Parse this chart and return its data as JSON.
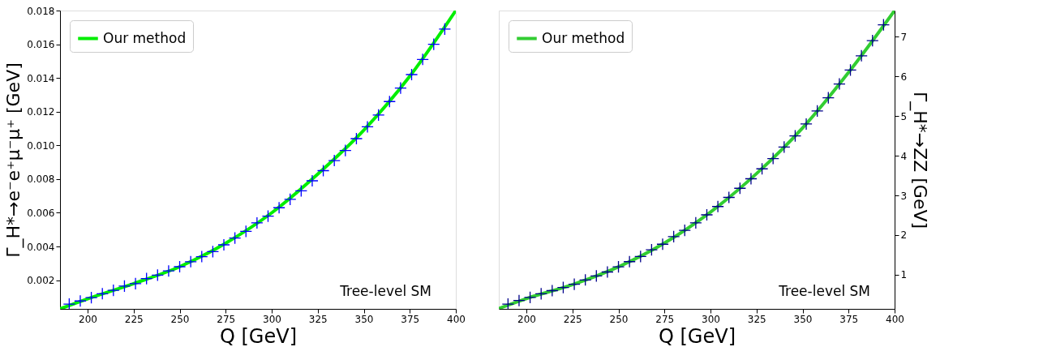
{
  "chart_data": [
    {
      "type": "line",
      "xlabel": "Q [GeV]",
      "ylabel": "Γ_H*→e⁻e⁺μ⁻μ⁺ [GeV]",
      "annotations": [
        "Tree-level SM"
      ],
      "xlim": [
        185,
        400
      ],
      "xticks": [
        200,
        225,
        250,
        275,
        300,
        325,
        350,
        375,
        400
      ],
      "ylim": [
        0.0003,
        0.018
      ],
      "yticks": [
        0.002,
        0.004,
        0.006,
        0.008,
        {
          "value": 0.01,
          "label": "0.010"
        },
        0.012,
        0.014,
        0.016,
        0.018
      ],
      "legend": "top left",
      "grid": false,
      "series": [
        {
          "name": "Our method",
          "color": "#00ee00",
          "x": [
            185,
            200,
            225,
            250,
            275,
            300,
            325,
            350,
            375,
            400
          ],
          "values": [
            0.0003,
            0.0009,
            0.0018,
            0.0028,
            0.0042,
            0.006,
            0.0083,
            0.0109,
            0.0141,
            0.018
          ]
        },
        {
          "type": "scatter",
          "marker": "cross",
          "color": "#0000ff",
          "x": [
            190,
            196,
            202,
            208,
            214,
            220,
            226,
            232,
            238,
            244,
            250,
            256,
            262,
            268,
            274,
            280,
            286,
            292,
            298,
            304,
            310,
            316,
            322,
            328,
            334,
            340,
            346,
            352,
            358,
            364,
            370,
            376,
            382,
            388,
            394
          ],
          "values": [
            0.00058,
            0.00077,
            0.00097,
            0.0012,
            0.0014,
            0.00165,
            0.0018,
            0.0021,
            0.0023,
            0.00255,
            0.0028,
            0.0031,
            0.0034,
            0.0037,
            0.0041,
            0.0045,
            0.0049,
            0.0054,
            0.0058,
            0.0063,
            0.0068,
            0.0073,
            0.0079,
            0.0085,
            0.0091,
            0.0097,
            0.0104,
            0.0111,
            0.0118,
            0.0126,
            0.0134,
            0.0142,
            0.0151,
            0.016,
            0.0169
          ]
        }
      ]
    },
    {
      "type": "line",
      "xlabel": "Q [GeV]",
      "ylabel": "Γ_H*→ZZ [GeV]",
      "annotations": [
        "Tree-level SM"
      ],
      "xlim": [
        185,
        400
      ],
      "xticks": [
        200,
        225,
        250,
        275,
        300,
        325,
        350,
        375,
        400
      ],
      "ylim": [
        0.14,
        7.66
      ],
      "yticks": [
        1,
        2,
        3,
        4,
        5,
        6,
        7
      ],
      "legend": "top left",
      "grid": false,
      "series": [
        {
          "name": "Our method",
          "color": "#32cd32",
          "x": [
            185,
            200,
            225,
            250,
            275,
            300,
            325,
            350,
            375,
            400
          ],
          "values": [
            0.15,
            0.4,
            0.75,
            1.2,
            1.8,
            2.58,
            3.55,
            4.7,
            6.1,
            7.66
          ]
        },
        {
          "type": "scatter",
          "marker": "cross",
          "color": "#00008b",
          "x": [
            190,
            196,
            202,
            208,
            214,
            220,
            226,
            232,
            238,
            244,
            250,
            256,
            262,
            268,
            274,
            280,
            286,
            292,
            298,
            304,
            310,
            316,
            322,
            328,
            334,
            340,
            346,
            352,
            358,
            364,
            370,
            376,
            382,
            388,
            394
          ],
          "values": [
            0.26,
            0.35,
            0.43,
            0.52,
            0.6,
            0.68,
            0.76,
            0.87,
            0.97,
            1.07,
            1.2,
            1.33,
            1.46,
            1.63,
            1.77,
            1.96,
            2.12,
            2.31,
            2.51,
            2.72,
            2.95,
            3.18,
            3.42,
            3.67,
            3.93,
            4.22,
            4.5,
            4.8,
            5.13,
            5.46,
            5.81,
            6.16,
            6.52,
            6.9,
            7.3
          ]
        }
      ]
    }
  ]
}
